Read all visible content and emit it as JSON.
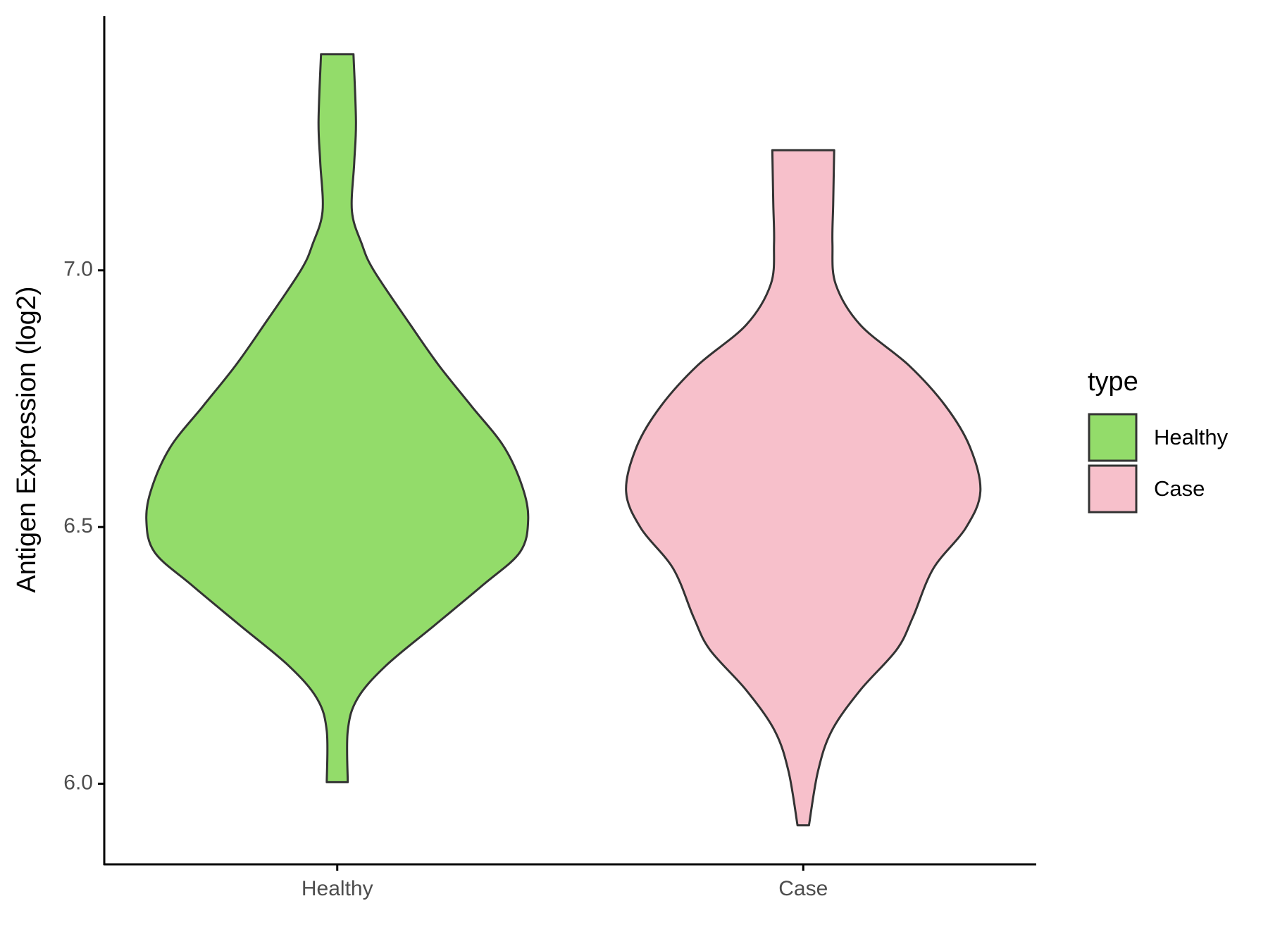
{
  "chart_data": {
    "type": "violin",
    "y_label": "Antigen Expression (log2)",
    "categories": [
      "Healthy",
      "Case"
    ],
    "legend_title": "type",
    "ylim": [
      5.843,
      7.495
    ],
    "yticks": [
      {
        "value": 6,
        "label": "6.0"
      },
      {
        "value": 6.5,
        "label": "6.5"
      },
      {
        "value": 7,
        "label": "7.0"
      }
    ],
    "series": [
      {
        "name": "Healthy",
        "color": "#93dc6a",
        "y": [
          7.421,
          7.29,
          7.21,
          7.115,
          7.052,
          7.0,
          6.894,
          6.815,
          6.736,
          6.657,
          6.578,
          6.514,
          6.451,
          6.388,
          6.309,
          6.23,
          6.166,
          6.103,
          6.003
        ],
        "density": [
          0.085,
          0.098,
          0.089,
          0.077,
          0.128,
          0.191,
          0.383,
          0.532,
          0.702,
          0.872,
          0.97,
          1.0,
          0.957,
          0.766,
          0.511,
          0.255,
          0.106,
          0.055,
          0.055
        ]
      },
      {
        "name": "Case",
        "color": "#f7c0cb",
        "y": [
          7.234,
          7.131,
          7.052,
          6.973,
          6.894,
          6.815,
          6.736,
          6.657,
          6.57,
          6.498,
          6.419,
          6.324,
          6.261,
          6.182,
          6.103,
          6.024,
          5.919
        ],
        "density": [
          0.162,
          0.157,
          0.153,
          0.17,
          0.298,
          0.553,
          0.745,
          0.872,
          0.928,
          0.851,
          0.681,
          0.574,
          0.489,
          0.298,
          0.149,
          0.077,
          0.03
        ]
      }
    ]
  }
}
